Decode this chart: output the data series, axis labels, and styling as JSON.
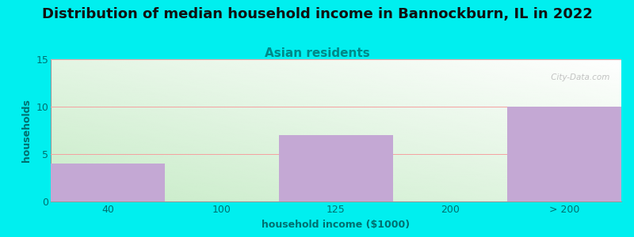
{
  "title": "Distribution of median household income in Bannockburn, IL in 2022",
  "subtitle": "Asian residents",
  "xlabel": "household income ($1000)",
  "ylabel": "households",
  "categories": [
    "40",
    "100",
    "125",
    "200",
    "> 200"
  ],
  "values": [
    4,
    0,
    7,
    0,
    10
  ],
  "bar_color": "#c4a8d4",
  "ylim": [
    0,
    15
  ],
  "yticks": [
    0,
    5,
    10,
    15
  ],
  "grid_color": "#f5a0a0",
  "background_outer": "#00efef",
  "grad_bottom": "#c8ecc8",
  "grad_top": "#f8fff8",
  "title_fontsize": 13,
  "subtitle_fontsize": 11,
  "subtitle_color": "#008888",
  "axis_label_color": "#007070",
  "tick_color": "#007070",
  "title_fontweight": "bold",
  "watermark": " City-Data.com"
}
